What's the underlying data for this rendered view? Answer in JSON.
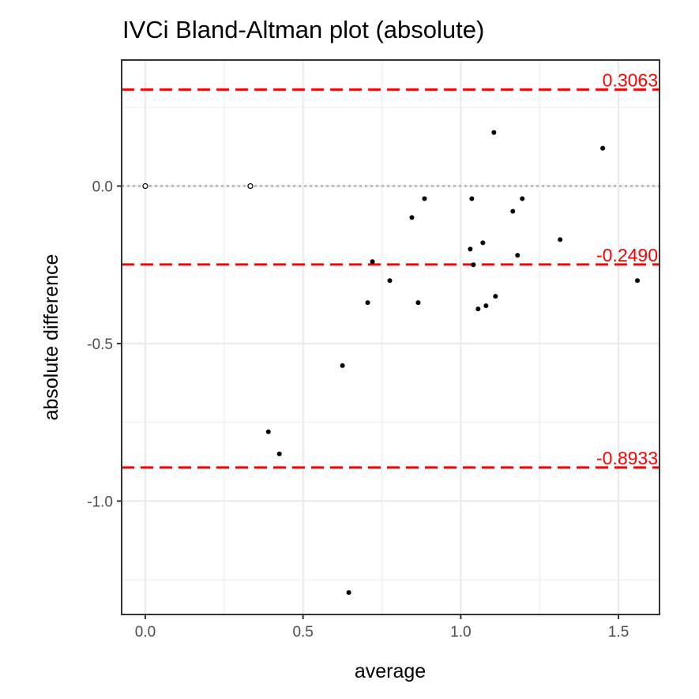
{
  "chart_data": {
    "type": "scatter",
    "title": "IVCi   Bland-Altman plot (absolute)",
    "xlabel": "average",
    "ylabel": "absolute difference",
    "xlim": [
      -0.075,
      1.63
    ],
    "ylim": [
      -1.36,
      0.4
    ],
    "x_ticks": [
      0.0,
      0.5,
      1.0,
      1.5
    ],
    "x_tick_labels": [
      "0.0",
      "0.5",
      "1.0",
      "1.5"
    ],
    "y_ticks": [
      0.0,
      -0.5,
      -1.0
    ],
    "y_tick_labels": [
      "0.0",
      "-0.5",
      "-1.0"
    ],
    "grid": true,
    "zero_line": {
      "y": 0.0,
      "style": "dotted",
      "color": "#bebebe"
    },
    "reference_lines": [
      {
        "name": "upper limit of agreement",
        "y": 0.3063,
        "label": "0.3063",
        "color": "#ff0000",
        "style": "dashed"
      },
      {
        "name": "mean difference",
        "y": -0.249,
        "label": "-0.2490",
        "color": "#ff0000",
        "style": "dashed"
      },
      {
        "name": "lower limit of agreement",
        "y": -0.8933,
        "label": "-0.8933",
        "color": "#ff0000",
        "style": "dashed"
      }
    ],
    "points": [
      {
        "x": 0.0,
        "y": 0.0,
        "filled": false
      },
      {
        "x": 0.333,
        "y": 0.0,
        "filled": false
      },
      {
        "x": 0.39,
        "y": -0.78,
        "filled": true
      },
      {
        "x": 0.425,
        "y": -0.85,
        "filled": true
      },
      {
        "x": 0.625,
        "y": -0.57,
        "filled": true
      },
      {
        "x": 0.645,
        "y": -1.29,
        "filled": true
      },
      {
        "x": 0.705,
        "y": -0.37,
        "filled": true
      },
      {
        "x": 0.72,
        "y": -0.24,
        "filled": true
      },
      {
        "x": 0.775,
        "y": -0.3,
        "filled": true
      },
      {
        "x": 0.845,
        "y": -0.1,
        "filled": true
      },
      {
        "x": 0.865,
        "y": -0.37,
        "filled": true
      },
      {
        "x": 0.885,
        "y": -0.04,
        "filled": true
      },
      {
        "x": 1.03,
        "y": -0.2,
        "filled": true
      },
      {
        "x": 1.035,
        "y": -0.04,
        "filled": true
      },
      {
        "x": 1.04,
        "y": -0.25,
        "filled": true
      },
      {
        "x": 1.055,
        "y": -0.39,
        "filled": true
      },
      {
        "x": 1.07,
        "y": -0.18,
        "filled": true
      },
      {
        "x": 1.08,
        "y": -0.38,
        "filled": true
      },
      {
        "x": 1.105,
        "y": 0.17,
        "filled": true
      },
      {
        "x": 1.11,
        "y": -0.35,
        "filled": true
      },
      {
        "x": 1.165,
        "y": -0.08,
        "filled": true
      },
      {
        "x": 1.18,
        "y": -0.22,
        "filled": true
      },
      {
        "x": 1.195,
        "y": -0.04,
        "filled": true
      },
      {
        "x": 1.315,
        "y": -0.17,
        "filled": true
      },
      {
        "x": 1.45,
        "y": 0.12,
        "filled": true
      },
      {
        "x": 1.56,
        "y": -0.3,
        "filled": true
      }
    ]
  }
}
